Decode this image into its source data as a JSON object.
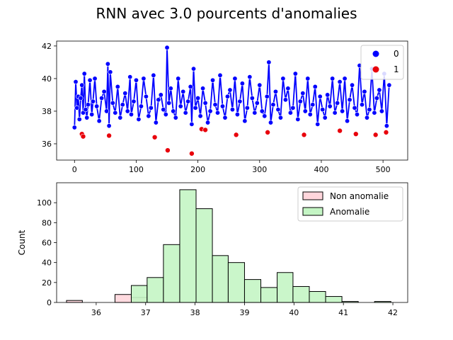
{
  "title": "RNN  avec 3.0 pourcents d'anomalies",
  "chart_data": [
    {
      "type": "scatter",
      "xlim": [
        -29,
        540
      ],
      "ylim": [
        35.0,
        42.3
      ],
      "x_ticks": [
        0,
        100,
        200,
        300,
        400,
        500
      ],
      "y_ticks": [
        36,
        38,
        40,
        42
      ],
      "legend": {
        "position": "top-right",
        "entries": [
          "0",
          "1"
        ]
      },
      "colors": {
        "normal": "#0000ff",
        "anomaly": "#e8000b"
      },
      "line_series": {
        "name": "0",
        "note_points": "subsample of the visible normal trace; full trace has ~512 samples",
        "x": [
          0,
          2,
          4,
          6,
          8,
          10,
          12,
          14,
          16,
          18,
          20,
          22,
          25,
          28,
          30,
          33,
          36,
          40,
          44,
          48,
          52,
          54,
          56,
          58,
          62,
          66,
          70,
          74,
          78,
          82,
          86,
          90,
          92,
          96,
          100,
          104,
          108,
          112,
          116,
          120,
          124,
          128,
          132,
          136,
          140,
          144,
          148,
          150,
          153,
          156,
          160,
          164,
          168,
          172,
          176,
          180,
          184,
          188,
          190,
          193,
          196,
          200,
          204,
          208,
          212,
          216,
          220,
          224,
          228,
          232,
          236,
          240,
          244,
          248,
          252,
          256,
          260,
          264,
          268,
          272,
          276,
          280,
          284,
          288,
          292,
          296,
          300,
          304,
          308,
          312,
          315,
          318,
          322,
          326,
          330,
          334,
          338,
          342,
          346,
          350,
          354,
          358,
          362,
          366,
          370,
          374,
          378,
          382,
          386,
          390,
          394,
          398,
          402,
          406,
          410,
          414,
          418,
          422,
          426,
          430,
          434,
          438,
          442,
          446,
          450,
          454,
          458,
          462,
          466,
          470,
          474,
          478,
          482,
          486,
          490,
          494,
          498,
          502,
          506,
          510
        ],
        "y": [
          37.0,
          39.8,
          38.2,
          38.9,
          37.5,
          38.8,
          39.6,
          37.9,
          40.3,
          38.1,
          37.6,
          38.4,
          39.9,
          37.8,
          38.6,
          40.0,
          38.3,
          37.4,
          38.8,
          39.2,
          38.0,
          40.9,
          37.1,
          40.4,
          38.5,
          37.9,
          39.5,
          37.6,
          38.4,
          39.1,
          38.0,
          40.1,
          37.8,
          38.6,
          39.9,
          37.5,
          38.3,
          40.0,
          38.9,
          37.7,
          38.2,
          40.2,
          37.3,
          38.7,
          39.0,
          38.1,
          37.8,
          41.9,
          38.5,
          39.4,
          38.0,
          37.6,
          40.0,
          38.3,
          39.2,
          37.9,
          38.6,
          39.5,
          37.2,
          40.6,
          38.2,
          38.8,
          37.7,
          39.4,
          38.5,
          37.3,
          38.0,
          39.9,
          38.4,
          37.9,
          40.2,
          38.3,
          37.6,
          38.9,
          39.3,
          38.1,
          40.0,
          37.8,
          38.6,
          39.7,
          37.4,
          38.2,
          40.1,
          38.8,
          37.9,
          38.5,
          39.6,
          38.0,
          37.7,
          38.9,
          41.0,
          37.3,
          38.4,
          39.2,
          38.1,
          37.6,
          40.0,
          38.7,
          39.4,
          37.9,
          38.2,
          40.3,
          37.5,
          38.6,
          39.1,
          38.0,
          40.0,
          37.8,
          38.4,
          39.5,
          37.2,
          38.9,
          38.1,
          37.6,
          39.0,
          38.3,
          40.0,
          37.9,
          38.5,
          39.8,
          38.0,
          40.0,
          37.4,
          38.7,
          39.6,
          38.2,
          37.8,
          40.8,
          38.4,
          39.2,
          37.6,
          38.1,
          40.6,
          37.9,
          38.8,
          39.3,
          38.0,
          40.3,
          37.1,
          39.6
        ]
      },
      "anomaly_points": {
        "name": "1",
        "x": [
          12,
          14,
          56,
          130,
          151,
          190,
          206,
          212,
          262,
          313,
          372,
          430,
          456,
          488,
          505
        ],
        "y": [
          36.6,
          36.45,
          36.5,
          36.4,
          35.6,
          35.4,
          36.9,
          36.85,
          36.55,
          36.7,
          36.55,
          36.8,
          36.6,
          36.55,
          36.7
        ]
      }
    },
    {
      "type": "histogram",
      "ylabel": "Count",
      "xlim": [
        35.2,
        42.3
      ],
      "ylim": [
        0,
        120
      ],
      "x_ticks": [
        36,
        37,
        38,
        39,
        40,
        41,
        42
      ],
      "y_ticks": [
        0,
        20,
        40,
        60,
        80,
        100
      ],
      "legend": {
        "position": "top-right",
        "entries": [
          "Non anomalie",
          "Anomalie"
        ]
      },
      "colors": {
        "non_anomalie": "#ffd6dc",
        "anomalie": "#c4f5c4",
        "edge": "#000000"
      },
      "series": [
        {
          "name": "Non anomalie",
          "bins": [
            [
              35.4,
              35.72
            ],
            [
              36.38,
              36.71
            ],
            [
              36.71,
              37.03
            ]
          ],
          "values": [
            2,
            8,
            5
          ]
        },
        {
          "name": "Anomalie",
          "bins": [
            [
              36.71,
              37.03
            ],
            [
              37.03,
              37.36
            ],
            [
              37.36,
              37.69
            ],
            [
              37.69,
              38.02
            ],
            [
              38.02,
              38.35
            ],
            [
              38.35,
              38.67
            ],
            [
              38.67,
              39.0
            ],
            [
              39.0,
              39.33
            ],
            [
              39.33,
              39.66
            ],
            [
              39.66,
              39.98
            ],
            [
              39.98,
              40.31
            ],
            [
              40.31,
              40.64
            ],
            [
              40.64,
              40.97
            ],
            [
              40.97,
              41.3
            ],
            [
              41.63,
              41.96
            ]
          ],
          "values": [
            17,
            25,
            58,
            113,
            94,
            47,
            40,
            23,
            15,
            30,
            16,
            11,
            6,
            1,
            1
          ]
        }
      ]
    }
  ]
}
